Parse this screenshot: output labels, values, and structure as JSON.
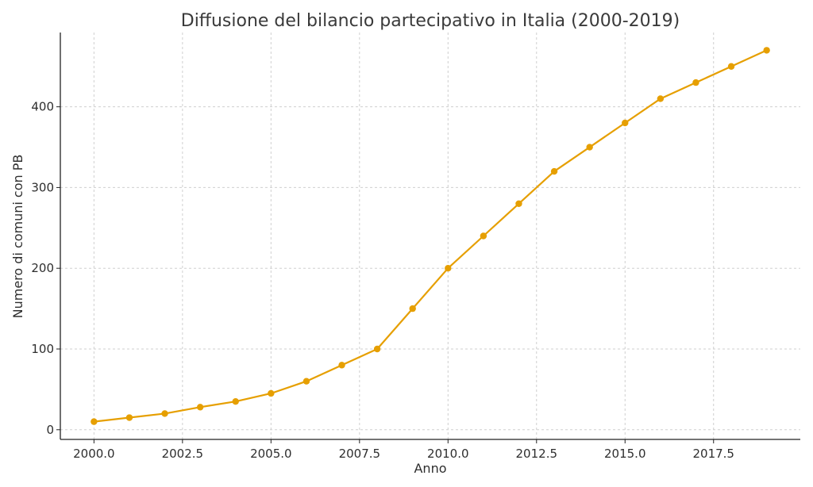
{
  "chart_data": {
    "type": "line",
    "title": "Diffusione del bilancio partecipativo in Italia (2000-2019)",
    "xlabel": "Anno",
    "ylabel": "Numero di comuni con PB",
    "xlim": [
      1999.05,
      2019.95
    ],
    "ylim": [
      -12,
      492
    ],
    "xticks": [
      2000.0,
      2002.5,
      2005.0,
      2007.5,
      2010.0,
      2012.5,
      2015.0,
      2017.5
    ],
    "xtick_labels": [
      "2000.0",
      "2002.5",
      "2005.0",
      "2007.5",
      "2010.0",
      "2012.5",
      "2015.0",
      "2017.5"
    ],
    "yticks": [
      0,
      100,
      200,
      300,
      400
    ],
    "ytick_labels": [
      "0",
      "100",
      "200",
      "300",
      "400"
    ],
    "grid": true,
    "legend": false,
    "series": [
      {
        "color": "#E69F00",
        "x": [
          2000,
          2001,
          2002,
          2003,
          2004,
          2005,
          2006,
          2007,
          2008,
          2009,
          2010,
          2011,
          2012,
          2013,
          2014,
          2015,
          2016,
          2017,
          2018,
          2019
        ],
        "y": [
          10,
          15,
          20,
          28,
          35,
          45,
          60,
          80,
          100,
          150,
          200,
          240,
          280,
          320,
          350,
          380,
          410,
          430,
          450,
          470
        ]
      }
    ]
  }
}
